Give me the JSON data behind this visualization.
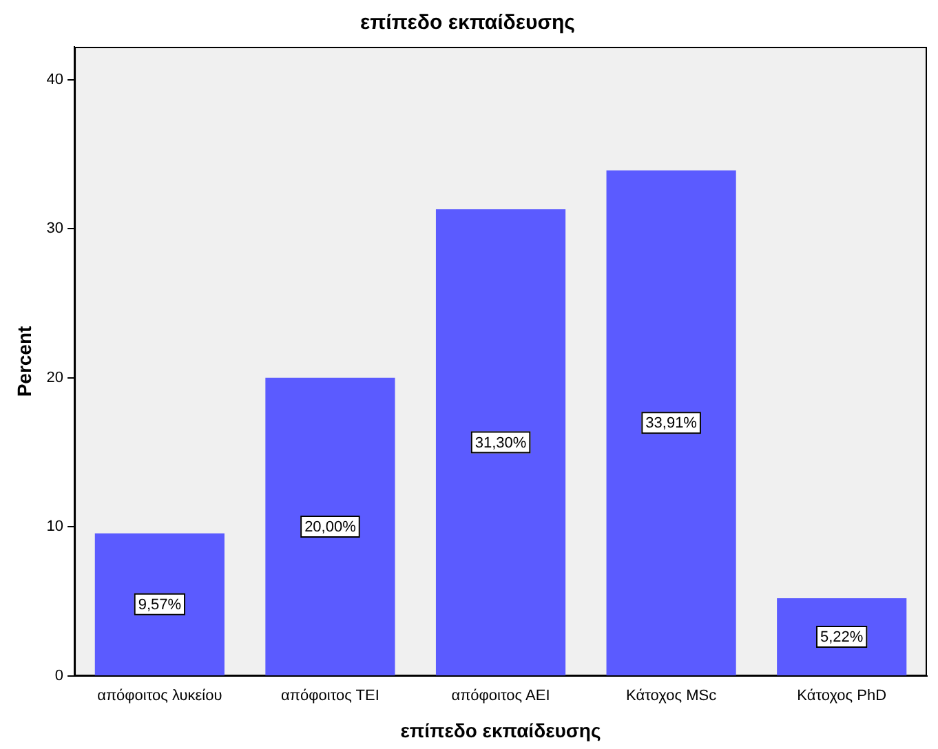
{
  "chart_data": {
    "type": "bar",
    "title": "επίπεδο εκπαίδευσης",
    "xlabel": "επίπεδο εκπαίδευσης",
    "ylabel": "Percent",
    "categories": [
      "απόφοιτος λυκείου",
      "απόφοιτος ΤΕΙ",
      "απόφοιτος ΑΕΙ",
      "Κάτοχος MSc",
      "Κάτοχος PhD"
    ],
    "values": [
      9.57,
      20.0,
      31.3,
      33.91,
      5.22
    ],
    "value_labels": [
      "9,57%",
      "20,00%",
      "31,30%",
      "33,91%",
      "5,22%"
    ],
    "color": "#5b5bff",
    "ylim": [
      0,
      42.2
    ],
    "yticks": [
      0,
      10,
      20,
      30,
      40
    ],
    "grid": false,
    "legend": false
  }
}
